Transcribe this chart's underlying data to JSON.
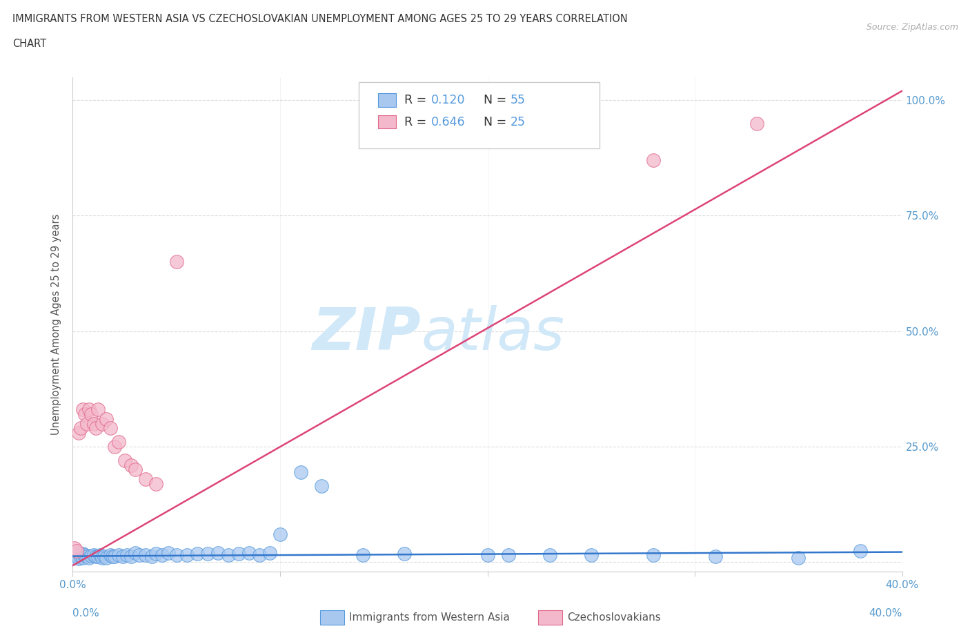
{
  "title_line1": "IMMIGRANTS FROM WESTERN ASIA VS CZECHOSLOVAKIAN UNEMPLOYMENT AMONG AGES 25 TO 29 YEARS CORRELATION",
  "title_line2": "CHART",
  "source_text": "Source: ZipAtlas.com",
  "ylabel": "Unemployment Among Ages 25 to 29 years",
  "x_min": 0.0,
  "x_max": 0.4,
  "y_min": -0.02,
  "y_max": 1.05,
  "x_ticks": [
    0.0,
    0.1,
    0.2,
    0.3,
    0.4
  ],
  "y_ticks": [
    0.0,
    0.25,
    0.5,
    0.75,
    1.0
  ],
  "y_tick_labels_right": [
    "",
    "25.0%",
    "50.0%",
    "75.0%",
    "100.0%"
  ],
  "blue_color": "#a8c8f0",
  "pink_color": "#f4b8cc",
  "blue_edge_color": "#5599dd",
  "pink_edge_color": "#e06688",
  "blue_line_color": "#3377cc",
  "pink_line_color": "#dd4477",
  "watermark_color": "#d0e8f8",
  "legend_R1": "0.120",
  "legend_N1": "55",
  "legend_R2": "0.646",
  "legend_N2": "25",
  "blue_scatter_x": [
    0.001,
    0.002,
    0.003,
    0.003,
    0.004,
    0.005,
    0.005,
    0.006,
    0.007,
    0.008,
    0.009,
    0.01,
    0.011,
    0.012,
    0.013,
    0.014,
    0.015,
    0.016,
    0.018,
    0.019,
    0.02,
    0.022,
    0.024,
    0.026,
    0.028,
    0.03,
    0.032,
    0.035,
    0.038,
    0.04,
    0.043,
    0.046,
    0.05,
    0.055,
    0.06,
    0.065,
    0.07,
    0.075,
    0.08,
    0.085,
    0.09,
    0.095,
    0.1,
    0.11,
    0.12,
    0.14,
    0.16,
    0.2,
    0.21,
    0.23,
    0.25,
    0.28,
    0.31,
    0.35,
    0.38
  ],
  "blue_scatter_y": [
    0.01,
    0.015,
    0.008,
    0.02,
    0.012,
    0.01,
    0.018,
    0.015,
    0.012,
    0.01,
    0.014,
    0.015,
    0.012,
    0.013,
    0.015,
    0.01,
    0.012,
    0.01,
    0.015,
    0.012,
    0.013,
    0.015,
    0.012,
    0.015,
    0.012,
    0.02,
    0.015,
    0.015,
    0.012,
    0.018,
    0.015,
    0.02,
    0.015,
    0.015,
    0.018,
    0.018,
    0.02,
    0.015,
    0.018,
    0.02,
    0.015,
    0.02,
    0.06,
    0.195,
    0.165,
    0.015,
    0.018,
    0.015,
    0.015,
    0.015,
    0.015,
    0.015,
    0.012,
    0.01,
    0.025
  ],
  "pink_scatter_x": [
    0.001,
    0.002,
    0.003,
    0.004,
    0.005,
    0.006,
    0.007,
    0.008,
    0.009,
    0.01,
    0.011,
    0.012,
    0.014,
    0.016,
    0.018,
    0.02,
    0.022,
    0.025,
    0.028,
    0.03,
    0.035,
    0.04,
    0.05,
    0.28,
    0.33
  ],
  "pink_scatter_y": [
    0.03,
    0.025,
    0.28,
    0.29,
    0.33,
    0.32,
    0.3,
    0.33,
    0.32,
    0.3,
    0.29,
    0.33,
    0.3,
    0.31,
    0.29,
    0.25,
    0.26,
    0.22,
    0.21,
    0.2,
    0.18,
    0.17,
    0.65,
    0.87,
    0.95
  ],
  "blue_trend_x": [
    0.0,
    0.4
  ],
  "blue_trend_y": [
    0.013,
    0.022
  ],
  "pink_trend_x": [
    -0.005,
    0.4
  ],
  "pink_trend_y": [
    -0.02,
    1.02
  ],
  "grid_color": "#e0e0e0",
  "background_color": "#ffffff",
  "tick_label_color": "#5599cc"
}
